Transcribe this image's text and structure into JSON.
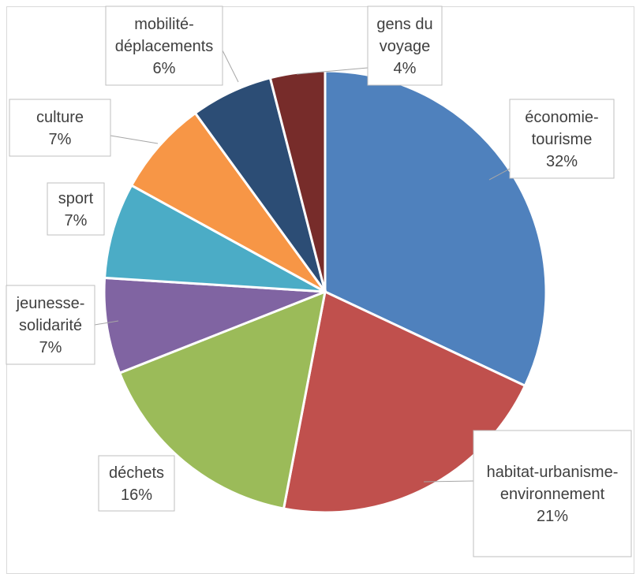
{
  "chart_data": {
    "type": "pie",
    "title": "",
    "slices": [
      {
        "label_lines": [
          "économie-",
          "tourisme"
        ],
        "percent_label": "32%",
        "value": 32,
        "color": "#4F81BD"
      },
      {
        "label_lines": [
          "habitat-urbanisme-",
          "environnement"
        ],
        "percent_label": "21%",
        "value": 21,
        "color": "#C0504D"
      },
      {
        "label_lines": [
          "déchets"
        ],
        "percent_label": "16%",
        "value": 16,
        "color": "#9BBB59"
      },
      {
        "label_lines": [
          "jeunesse-",
          "solidarité"
        ],
        "percent_label": "7%",
        "value": 7,
        "color": "#8064A2"
      },
      {
        "label_lines": [
          "sport"
        ],
        "percent_label": "7%",
        "value": 7,
        "color": "#4BACC6"
      },
      {
        "label_lines": [
          "culture"
        ],
        "percent_label": "7%",
        "value": 7,
        "color": "#F79646"
      },
      {
        "label_lines": [
          "mobilité-",
          "déplacements"
        ],
        "percent_label": "6%",
        "value": 6,
        "color": "#2C4D75"
      },
      {
        "label_lines": [
          "gens du",
          "voyage"
        ],
        "percent_label": "4%",
        "value": 4,
        "color": "#772C2A"
      }
    ],
    "legend": "none",
    "start_angle": "12 o'clock, clockwise"
  }
}
